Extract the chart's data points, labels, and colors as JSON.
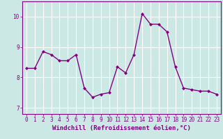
{
  "x": [
    0,
    1,
    2,
    3,
    4,
    5,
    6,
    7,
    8,
    9,
    10,
    11,
    12,
    13,
    14,
    15,
    16,
    17,
    18,
    19,
    20,
    21,
    22,
    23
  ],
  "y": [
    8.3,
    8.3,
    8.85,
    8.75,
    8.55,
    8.55,
    8.75,
    7.65,
    7.35,
    7.45,
    7.5,
    8.35,
    8.15,
    8.75,
    10.1,
    9.75,
    9.75,
    9.5,
    8.35,
    7.65,
    7.6,
    7.55,
    7.55,
    7.45
  ],
  "line_color": "#800080",
  "marker": "D",
  "marker_size": 2.0,
  "linewidth": 1.0,
  "xlabel": "Windchill (Refroidissement éolien,°C)",
  "xlim": [
    -0.5,
    23.5
  ],
  "ylim": [
    6.8,
    10.5
  ],
  "yticks": [
    7,
    8,
    9,
    10
  ],
  "xticks": [
    0,
    1,
    2,
    3,
    4,
    5,
    6,
    7,
    8,
    9,
    10,
    11,
    12,
    13,
    14,
    15,
    16,
    17,
    18,
    19,
    20,
    21,
    22,
    23
  ],
  "bg_color": "#cce8e4",
  "grid_color": "#ffffff",
  "tick_color": "#800080",
  "label_color": "#800080",
  "tick_fontsize": 5.5,
  "xlabel_fontsize": 6.5
}
